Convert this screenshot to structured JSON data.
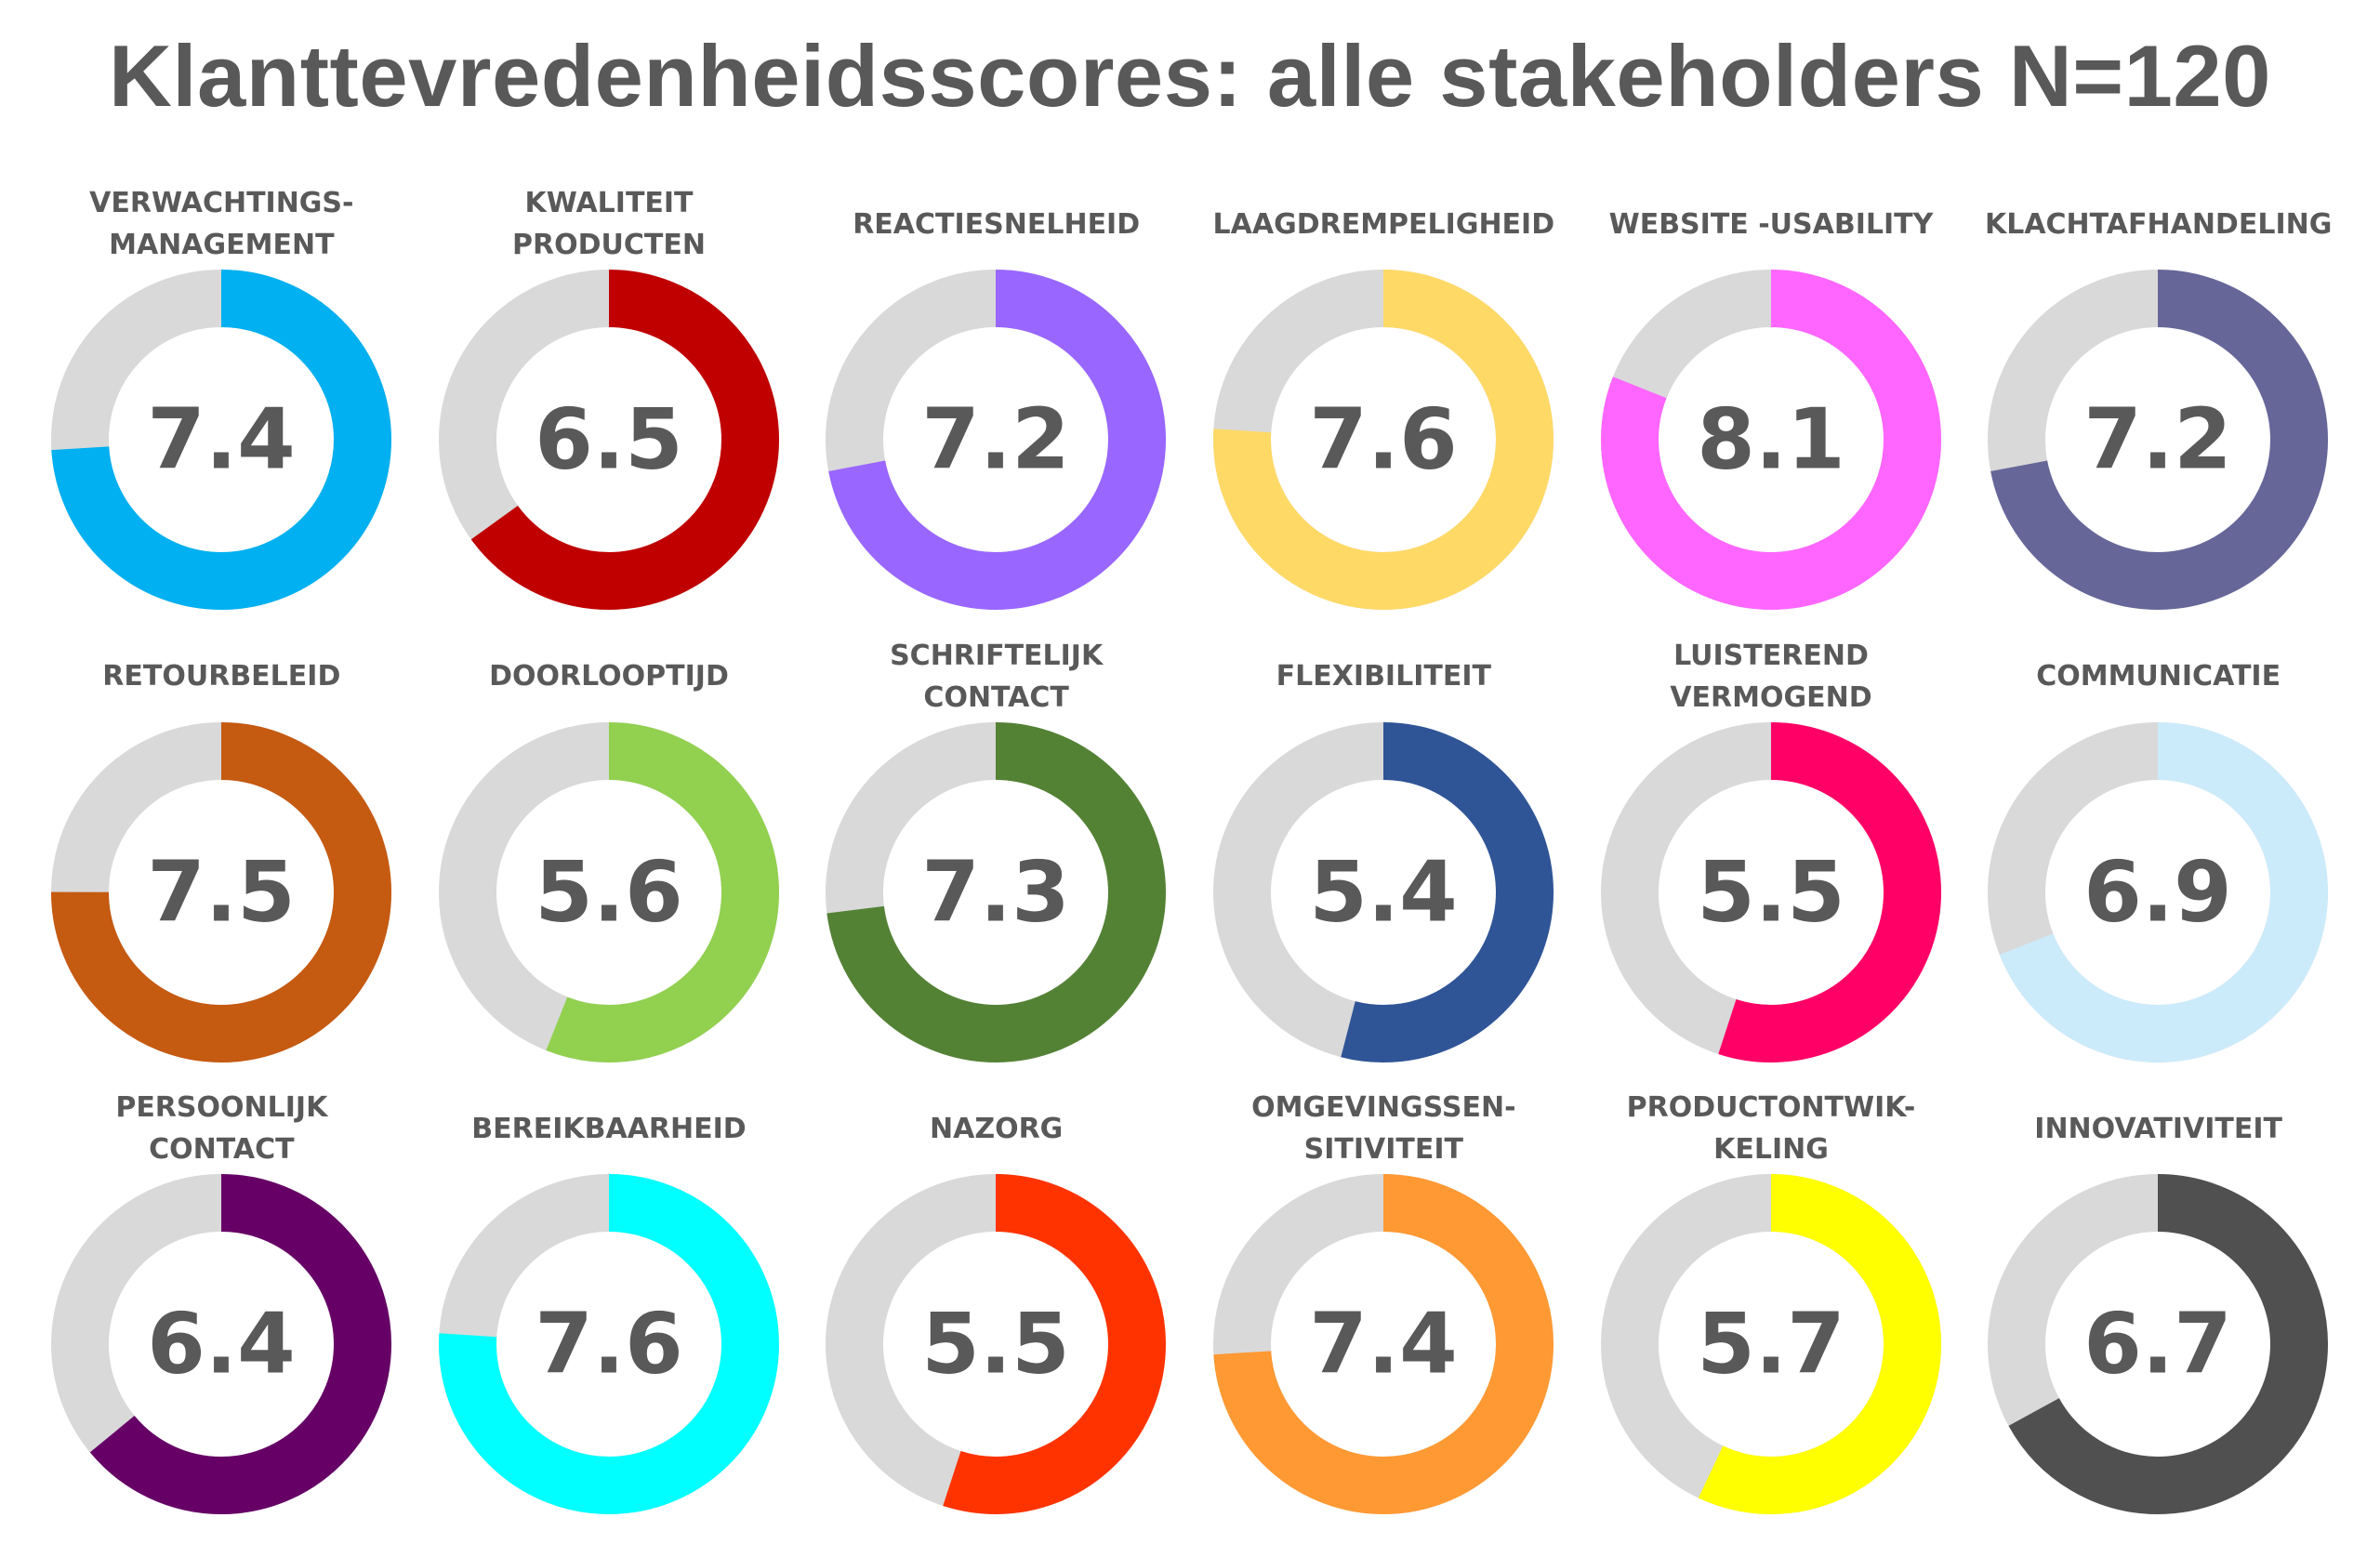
{
  "title": "Klanttevredenheidsscores: alle stakeholders N=120",
  "chart_data": {
    "type": "donut",
    "scale_max": 10,
    "track_color": "#D9D9D9",
    "items": [
      {
        "label_lines": [
          "VERWACHTINGS-",
          "MANAGEMENT"
        ],
        "value": 7.4,
        "value_text": "7.4",
        "color": "#00B0F0"
      },
      {
        "label_lines": [
          "KWALITEIT",
          "PRODUCTEN"
        ],
        "value": 6.5,
        "value_text": "6.5",
        "color": "#C00000"
      },
      {
        "label_lines": [
          "REACTIESNELHEID"
        ],
        "value": 7.2,
        "value_text": "7.2",
        "color": "#9966FF"
      },
      {
        "label_lines": [
          "LAAGDREMPELIGHEID"
        ],
        "value": 7.6,
        "value_text": "7.6",
        "color": "#FFD966"
      },
      {
        "label_lines": [
          "WEBSITE -USABILITY"
        ],
        "value": 8.1,
        "value_text": "8.1",
        "color": "#FF66FF"
      },
      {
        "label_lines": [
          "KLACHTAFHANDELING"
        ],
        "value": 7.2,
        "value_text": "7.2",
        "color": "#666699"
      },
      {
        "label_lines": [
          "RETOURBELEID"
        ],
        "value": 7.5,
        "value_text": "7.5",
        "color": "#C55A11"
      },
      {
        "label_lines": [
          "DOORLOOPTIJD"
        ],
        "value": 5.6,
        "value_text": "5.6",
        "color": "#92D050"
      },
      {
        "label_lines": [
          "SCHRIFTELIJK",
          "CONTACT"
        ],
        "value": 7.3,
        "value_text": "7.3",
        "color": "#548235"
      },
      {
        "label_lines": [
          "FLEXIBILITEIT"
        ],
        "value": 5.4,
        "value_text": "5.4",
        "color": "#2F5597"
      },
      {
        "label_lines": [
          "LUISTEREND",
          "VERMOGEND"
        ],
        "value": 5.5,
        "value_text": "5.5",
        "color": "#FF0066"
      },
      {
        "label_lines": [
          "COMMUNICATIE"
        ],
        "value": 6.9,
        "value_text": "6.9",
        "color": "#CCEBFA"
      },
      {
        "label_lines": [
          "PERSOONLIJK",
          "CONTACT"
        ],
        "value": 6.4,
        "value_text": "6.4",
        "color": "#660066"
      },
      {
        "label_lines": [
          "BEREIKBAARHEID"
        ],
        "value": 7.6,
        "value_text": "7.6",
        "color": "#00FFFF"
      },
      {
        "label_lines": [
          "NAZORG"
        ],
        "value": 5.5,
        "value_text": "5.5",
        "color": "#FF3300"
      },
      {
        "label_lines": [
          "OMGEVINGSSEN-",
          "SITIVITEIT"
        ],
        "value": 7.4,
        "value_text": "7.4",
        "color": "#FF9933"
      },
      {
        "label_lines": [
          "PRODUCTONTWIK-",
          "KELING"
        ],
        "value": 5.7,
        "value_text": "5.7",
        "color": "#FFFF00"
      },
      {
        "label_lines": [
          "INNOVATIVITEIT"
        ],
        "value": 6.7,
        "value_text": "6.7",
        "color": "#505050"
      }
    ]
  }
}
